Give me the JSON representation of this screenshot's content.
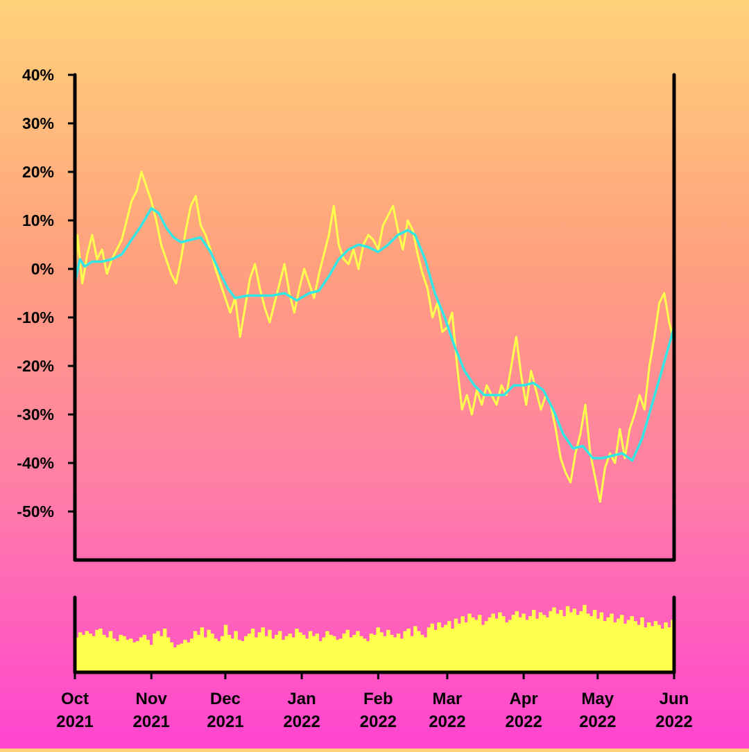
{
  "chart_data": {
    "type": "line",
    "title": "",
    "xlabel": "",
    "ylabel": "",
    "x_range": [
      "2021-10-01",
      "2022-06-01"
    ],
    "ylim": [
      -60,
      40
    ],
    "y_ticks": [
      "40%",
      "30%",
      "20%",
      "10%",
      "0%",
      "-10%",
      "-20%",
      "-30%",
      "-40%",
      "-50%"
    ],
    "y_tick_values": [
      40,
      30,
      20,
      10,
      0,
      -10,
      -20,
      -30,
      -40,
      -50
    ],
    "x_ticks": [
      {
        "date": "2021-10-01",
        "month": "Oct",
        "year": "2021"
      },
      {
        "date": "2021-11-01",
        "month": "Nov",
        "year": "2021"
      },
      {
        "date": "2021-12-01",
        "month": "Dec",
        "year": "2021"
      },
      {
        "date": "2022-01-01",
        "month": "Jan",
        "year": "2022"
      },
      {
        "date": "2022-02-01",
        "month": "Feb",
        "year": "2022"
      },
      {
        "date": "2022-03-01",
        "month": "Mar",
        "year": "2022"
      },
      {
        "date": "2022-04-01",
        "month": "Apr",
        "year": "2022"
      },
      {
        "date": "2022-05-01",
        "month": "May",
        "year": "2022"
      },
      {
        "date": "2022-06-01",
        "month": "Jun",
        "year": "2022"
      }
    ],
    "grid": false,
    "legend": "none",
    "series": [
      {
        "role": "daily",
        "color": "#ffff4d",
        "points": [
          [
            "2021-10-01",
            -2
          ],
          [
            "2021-10-02",
            7
          ],
          [
            "2021-10-04",
            -3
          ],
          [
            "2021-10-06",
            3
          ],
          [
            "2021-10-08",
            7
          ],
          [
            "2021-10-10",
            2
          ],
          [
            "2021-10-12",
            4
          ],
          [
            "2021-10-14",
            -1
          ],
          [
            "2021-10-16",
            2
          ],
          [
            "2021-10-18",
            4
          ],
          [
            "2021-10-20",
            6
          ],
          [
            "2021-10-22",
            10
          ],
          [
            "2021-10-24",
            14
          ],
          [
            "2021-10-26",
            16
          ],
          [
            "2021-10-28",
            20
          ],
          [
            "2021-10-30",
            17
          ],
          [
            "2021-11-01",
            14
          ],
          [
            "2021-11-03",
            10
          ],
          [
            "2021-11-05",
            5
          ],
          [
            "2021-11-07",
            2
          ],
          [
            "2021-11-09",
            -1
          ],
          [
            "2021-11-11",
            -3
          ],
          [
            "2021-11-13",
            2
          ],
          [
            "2021-11-15",
            8
          ],
          [
            "2021-11-17",
            13
          ],
          [
            "2021-11-19",
            15
          ],
          [
            "2021-11-21",
            9
          ],
          [
            "2021-11-23",
            7
          ],
          [
            "2021-11-25",
            4
          ],
          [
            "2021-11-27",
            0
          ],
          [
            "2021-11-29",
            -3
          ],
          [
            "2021-12-01",
            -6
          ],
          [
            "2021-12-03",
            -9
          ],
          [
            "2021-12-05",
            -6
          ],
          [
            "2021-12-07",
            -14
          ],
          [
            "2021-12-09",
            -8
          ],
          [
            "2021-12-11",
            -2
          ],
          [
            "2021-12-13",
            1
          ],
          [
            "2021-12-15",
            -4
          ],
          [
            "2021-12-17",
            -8
          ],
          [
            "2021-12-19",
            -11
          ],
          [
            "2021-12-21",
            -7
          ],
          [
            "2021-12-23",
            -3
          ],
          [
            "2021-12-25",
            1
          ],
          [
            "2021-12-27",
            -5
          ],
          [
            "2021-12-29",
            -9
          ],
          [
            "2021-12-31",
            -4
          ],
          [
            "2022-01-02",
            0
          ],
          [
            "2022-01-04",
            -3
          ],
          [
            "2022-01-06",
            -6
          ],
          [
            "2022-01-08",
            -1
          ],
          [
            "2022-01-10",
            3
          ],
          [
            "2022-01-12",
            7
          ],
          [
            "2022-01-14",
            13
          ],
          [
            "2022-01-16",
            5
          ],
          [
            "2022-01-18",
            2
          ],
          [
            "2022-01-20",
            1
          ],
          [
            "2022-01-22",
            4
          ],
          [
            "2022-01-24",
            0
          ],
          [
            "2022-01-26",
            5
          ],
          [
            "2022-01-28",
            7
          ],
          [
            "2022-01-30",
            6
          ],
          [
            "2022-02-01",
            4
          ],
          [
            "2022-02-03",
            9
          ],
          [
            "2022-02-05",
            11
          ],
          [
            "2022-02-07",
            13
          ],
          [
            "2022-02-09",
            8
          ],
          [
            "2022-02-11",
            4
          ],
          [
            "2022-02-13",
            10
          ],
          [
            "2022-02-15",
            8
          ],
          [
            "2022-02-17",
            3
          ],
          [
            "2022-02-19",
            -1
          ],
          [
            "2022-02-21",
            -4
          ],
          [
            "2022-02-23",
            -10
          ],
          [
            "2022-02-25",
            -7
          ],
          [
            "2022-02-27",
            -13
          ],
          [
            "2022-03-01",
            -12
          ],
          [
            "2022-03-03",
            -9
          ],
          [
            "2022-03-05",
            -20
          ],
          [
            "2022-03-07",
            -29
          ],
          [
            "2022-03-09",
            -26
          ],
          [
            "2022-03-11",
            -30
          ],
          [
            "2022-03-13",
            -25
          ],
          [
            "2022-03-15",
            -28
          ],
          [
            "2022-03-17",
            -24
          ],
          [
            "2022-03-19",
            -26
          ],
          [
            "2022-03-21",
            -28
          ],
          [
            "2022-03-23",
            -24
          ],
          [
            "2022-03-25",
            -26
          ],
          [
            "2022-03-27",
            -20
          ],
          [
            "2022-03-29",
            -14
          ],
          [
            "2022-03-31",
            -22
          ],
          [
            "2022-04-02",
            -28
          ],
          [
            "2022-04-04",
            -21
          ],
          [
            "2022-04-06",
            -25
          ],
          [
            "2022-04-08",
            -29
          ],
          [
            "2022-04-10",
            -26
          ],
          [
            "2022-04-12",
            -28
          ],
          [
            "2022-04-14",
            -33
          ],
          [
            "2022-04-16",
            -39
          ],
          [
            "2022-04-18",
            -42
          ],
          [
            "2022-04-20",
            -44
          ],
          [
            "2022-04-22",
            -38
          ],
          [
            "2022-04-24",
            -34
          ],
          [
            "2022-04-26",
            -28
          ],
          [
            "2022-04-28",
            -38
          ],
          [
            "2022-04-30",
            -43
          ],
          [
            "2022-05-02",
            -48
          ],
          [
            "2022-05-04",
            -41
          ],
          [
            "2022-05-06",
            -38
          ],
          [
            "2022-05-08",
            -40
          ],
          [
            "2022-05-10",
            -33
          ],
          [
            "2022-05-12",
            -39
          ],
          [
            "2022-05-14",
            -33
          ],
          [
            "2022-05-16",
            -30
          ],
          [
            "2022-05-18",
            -26
          ],
          [
            "2022-05-20",
            -29
          ],
          [
            "2022-05-22",
            -20
          ],
          [
            "2022-05-24",
            -14
          ],
          [
            "2022-05-26",
            -7
          ],
          [
            "2022-05-28",
            -5
          ],
          [
            "2022-05-30",
            -11
          ],
          [
            "2022-06-01",
            -15
          ]
        ]
      },
      {
        "role": "moving-average",
        "color": "#33e6e6",
        "points": [
          [
            "2021-10-01",
            -3
          ],
          [
            "2021-10-03",
            2
          ],
          [
            "2021-10-05",
            0.5
          ],
          [
            "2021-10-08",
            1.5
          ],
          [
            "2021-10-12",
            1.5
          ],
          [
            "2021-10-16",
            2
          ],
          [
            "2021-10-20",
            3
          ],
          [
            "2021-10-24",
            6
          ],
          [
            "2021-10-28",
            9
          ],
          [
            "2021-11-01",
            12.5
          ],
          [
            "2021-11-04",
            11.5
          ],
          [
            "2021-11-07",
            8.5
          ],
          [
            "2021-11-10",
            6.5
          ],
          [
            "2021-11-13",
            5.5
          ],
          [
            "2021-11-17",
            6
          ],
          [
            "2021-11-21",
            6.5
          ],
          [
            "2021-11-25",
            3.5
          ],
          [
            "2021-11-29",
            -1
          ],
          [
            "2021-12-02",
            -4
          ],
          [
            "2021-12-05",
            -6
          ],
          [
            "2021-12-10",
            -5.5
          ],
          [
            "2021-12-15",
            -5.5
          ],
          [
            "2021-12-20",
            -5.5
          ],
          [
            "2021-12-25",
            -5
          ],
          [
            "2021-12-30",
            -6.5
          ],
          [
            "2022-01-04",
            -5
          ],
          [
            "2022-01-08",
            -4.5
          ],
          [
            "2022-01-12",
            -1.5
          ],
          [
            "2022-01-16",
            2
          ],
          [
            "2022-01-20",
            4
          ],
          [
            "2022-01-24",
            5
          ],
          [
            "2022-01-28",
            4.5
          ],
          [
            "2022-02-01",
            3.5
          ],
          [
            "2022-02-05",
            5
          ],
          [
            "2022-02-09",
            7
          ],
          [
            "2022-02-13",
            8
          ],
          [
            "2022-02-16",
            7
          ],
          [
            "2022-02-20",
            2
          ],
          [
            "2022-02-24",
            -5
          ],
          [
            "2022-02-28",
            -10
          ],
          [
            "2022-03-04",
            -16
          ],
          [
            "2022-03-08",
            -21
          ],
          [
            "2022-03-12",
            -24
          ],
          [
            "2022-03-16",
            -26
          ],
          [
            "2022-03-20",
            -26
          ],
          [
            "2022-03-24",
            -26
          ],
          [
            "2022-03-28",
            -24
          ],
          [
            "2022-04-01",
            -24
          ],
          [
            "2022-04-05",
            -23.5
          ],
          [
            "2022-04-09",
            -25
          ],
          [
            "2022-04-13",
            -29
          ],
          [
            "2022-04-17",
            -34
          ],
          [
            "2022-04-21",
            -37
          ],
          [
            "2022-04-25",
            -36.5
          ],
          [
            "2022-04-29",
            -39
          ],
          [
            "2022-05-03",
            -39
          ],
          [
            "2022-05-07",
            -38.5
          ],
          [
            "2022-05-11",
            -38
          ],
          [
            "2022-05-15",
            -39.5
          ],
          [
            "2022-05-19",
            -35
          ],
          [
            "2022-05-23",
            -28
          ],
          [
            "2022-05-27",
            -21
          ],
          [
            "2022-06-01",
            -12
          ]
        ]
      }
    ],
    "volume": {
      "type": "bar",
      "color": "#ffff4d",
      "values": [
        28,
        32,
        30,
        33,
        31,
        29,
        34,
        35,
        30,
        28,
        33,
        27,
        25,
        30,
        29,
        26,
        27,
        24,
        25,
        28,
        30,
        26,
        22,
        31,
        33,
        29,
        35,
        28,
        24,
        20,
        22,
        23,
        26,
        24,
        27,
        33,
        30,
        36,
        28,
        34,
        31,
        27,
        25,
        29,
        38,
        30,
        27,
        33,
        26,
        25,
        29,
        31,
        35,
        28,
        32,
        36,
        29,
        34,
        27,
        30,
        33,
        26,
        29,
        31,
        28,
        35,
        32,
        30,
        27,
        33,
        29,
        31,
        25,
        28,
        33,
        30,
        29,
        26,
        27,
        31,
        34,
        28,
        30,
        33,
        29,
        27,
        25,
        31,
        30,
        36,
        32,
        29,
        34,
        30,
        28,
        31,
        27,
        33,
        35,
        29,
        37,
        33,
        30,
        28,
        36,
        39,
        34,
        40,
        36,
        38,
        41,
        35,
        43,
        39,
        45,
        40,
        47,
        44,
        42,
        46,
        38,
        41,
        44,
        47,
        43,
        48,
        45,
        40,
        42,
        46,
        49,
        44,
        47,
        42,
        45,
        50,
        43,
        48,
        46,
        44,
        49,
        52,
        47,
        50,
        45,
        53,
        48,
        51,
        46,
        49,
        54,
        47,
        45,
        50,
        43,
        48,
        41,
        44,
        47,
        40,
        43,
        46,
        39,
        42,
        45,
        41,
        38,
        44,
        36,
        40,
        37,
        41,
        38,
        35,
        40,
        36,
        42
      ]
    }
  }
}
